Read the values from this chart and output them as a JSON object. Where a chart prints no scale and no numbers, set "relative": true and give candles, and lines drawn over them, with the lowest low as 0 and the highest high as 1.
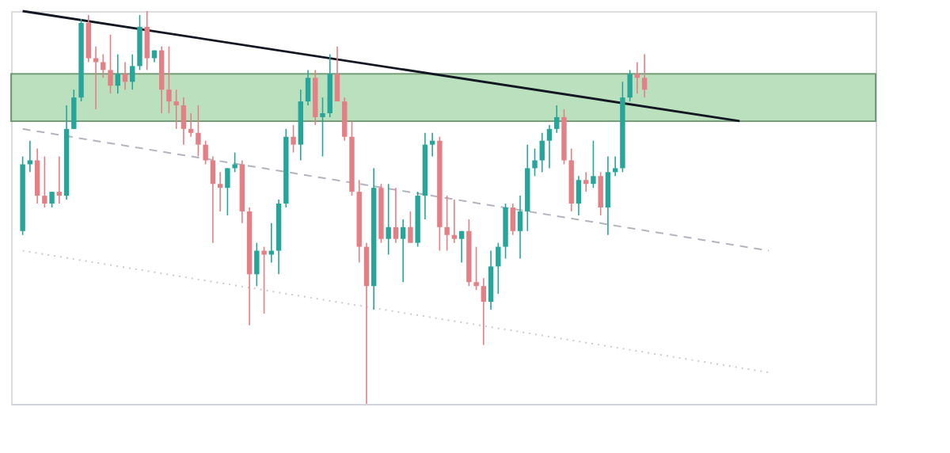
{
  "chart_data": {
    "type": "candlestick",
    "relative": true,
    "grid": false,
    "tick_labels": false,
    "categories": [
      null,
      null,
      null,
      null,
      null,
      null,
      null,
      null,
      null,
      null,
      null,
      null,
      null,
      null,
      null,
      null,
      null,
      null,
      null,
      null,
      null,
      null,
      null,
      null,
      null,
      null,
      null,
      null,
      null,
      null,
      null,
      null,
      null,
      null,
      null,
      null,
      null,
      null,
      null,
      null,
      null,
      null,
      null,
      null,
      null,
      null,
      null,
      null,
      null,
      null,
      null,
      null,
      null,
      null,
      null,
      null,
      null,
      null,
      null,
      null,
      null,
      null,
      null,
      null,
      null,
      null,
      null,
      null,
      null,
      null,
      null,
      null,
      null,
      null,
      null,
      null,
      null,
      null,
      null,
      null,
      null,
      null,
      null,
      null,
      null,
      null,
      null,
      null,
      null,
      null,
      null,
      null,
      null,
      null,
      null,
      null,
      null,
      null,
      null,
      null,
      null,
      null,
      null,
      null,
      null,
      null,
      null,
      null,
      null,
      null,
      null,
      null,
      null,
      null,
      null,
      null
    ],
    "ohlc": [
      [
        0.44,
        0.63,
        0.43,
        0.61
      ],
      [
        0.61,
        0.67,
        0.59,
        0.62
      ],
      [
        0.62,
        0.65,
        0.51,
        0.53
      ],
      [
        0.53,
        0.63,
        0.5,
        0.51
      ],
      [
        0.51,
        0.54,
        0.5,
        0.54
      ],
      [
        0.54,
        0.63,
        0.51,
        0.53
      ],
      [
        0.53,
        0.76,
        0.52,
        0.7
      ],
      [
        0.7,
        0.8,
        0.7,
        0.78
      ],
      [
        0.78,
        0.98,
        0.77,
        0.97
      ],
      [
        0.97,
        0.99,
        0.87,
        0.88
      ],
      [
        0.88,
        0.91,
        0.75,
        0.87
      ],
      [
        0.87,
        0.89,
        0.83,
        0.85
      ],
      [
        0.85,
        0.94,
        0.79,
        0.81
      ],
      [
        0.81,
        0.89,
        0.79,
        0.84
      ],
      [
        0.84,
        0.87,
        0.8,
        0.82
      ],
      [
        0.82,
        0.89,
        0.8,
        0.86
      ],
      [
        0.86,
        0.99,
        0.85,
        0.96
      ],
      [
        0.96,
        1.0,
        0.85,
        0.88
      ],
      [
        0.88,
        0.9,
        0.87,
        0.9
      ],
      [
        0.9,
        0.91,
        0.74,
        0.8
      ],
      [
        0.8,
        0.91,
        0.74,
        0.77
      ],
      [
        0.77,
        0.8,
        0.7,
        0.76
      ],
      [
        0.76,
        0.78,
        0.66,
        0.7
      ],
      [
        0.7,
        0.74,
        0.68,
        0.69
      ],
      [
        0.69,
        0.76,
        0.63,
        0.66
      ],
      [
        0.66,
        0.67,
        0.61,
        0.62
      ],
      [
        0.62,
        0.63,
        0.41,
        0.56
      ],
      [
        0.56,
        0.59,
        0.49,
        0.55
      ],
      [
        0.55,
        0.6,
        0.48,
        0.6
      ],
      [
        0.6,
        0.64,
        0.59,
        0.61
      ],
      [
        0.61,
        0.62,
        0.46,
        0.49
      ],
      [
        0.49,
        0.5,
        0.2,
        0.33
      ],
      [
        0.33,
        0.41,
        0.3,
        0.39
      ],
      [
        0.39,
        0.4,
        0.23,
        0.38
      ],
      [
        0.38,
        0.46,
        0.36,
        0.39
      ],
      [
        0.39,
        0.52,
        0.33,
        0.51
      ],
      [
        0.51,
        0.7,
        0.5,
        0.68
      ],
      [
        0.68,
        0.71,
        0.64,
        0.66
      ],
      [
        0.66,
        0.8,
        0.62,
        0.77
      ],
      [
        0.77,
        0.85,
        0.76,
        0.83
      ],
      [
        0.83,
        0.85,
        0.71,
        0.73
      ],
      [
        0.73,
        0.78,
        0.63,
        0.74
      ],
      [
        0.74,
        0.89,
        0.73,
        0.84
      ],
      [
        0.84,
        0.91,
        0.77,
        0.77
      ],
      [
        0.77,
        0.78,
        0.67,
        0.68
      ],
      [
        0.68,
        0.72,
        0.53,
        0.54
      ],
      [
        0.54,
        0.57,
        0.36,
        0.4
      ],
      [
        0.4,
        0.41,
        0.0,
        0.3
      ],
      [
        0.3,
        0.6,
        0.24,
        0.55
      ],
      [
        0.55,
        0.56,
        0.41,
        0.42
      ],
      [
        0.42,
        0.56,
        0.38,
        0.45
      ],
      [
        0.45,
        0.55,
        0.41,
        0.42
      ],
      [
        0.42,
        0.47,
        0.31,
        0.45
      ],
      [
        0.45,
        0.49,
        0.41,
        0.41
      ],
      [
        0.41,
        0.54,
        0.4,
        0.53
      ],
      [
        0.53,
        0.69,
        0.47,
        0.66
      ],
      [
        0.66,
        0.69,
        0.63,
        0.67
      ],
      [
        0.67,
        0.68,
        0.39,
        0.45
      ],
      [
        0.45,
        0.53,
        0.39,
        0.43
      ],
      [
        0.43,
        0.52,
        0.41,
        0.42
      ],
      [
        0.42,
        0.44,
        0.36,
        0.44
      ],
      [
        0.44,
        0.47,
        0.3,
        0.31
      ],
      [
        0.31,
        0.4,
        0.29,
        0.3
      ],
      [
        0.3,
        0.32,
        0.15,
        0.26
      ],
      [
        0.26,
        0.39,
        0.24,
        0.35
      ],
      [
        0.35,
        0.41,
        0.28,
        0.4
      ],
      [
        0.4,
        0.51,
        0.37,
        0.5
      ],
      [
        0.5,
        0.51,
        0.43,
        0.44
      ],
      [
        0.44,
        0.53,
        0.37,
        0.49
      ],
      [
        0.49,
        0.66,
        0.44,
        0.6
      ],
      [
        0.6,
        0.65,
        0.58,
        0.62
      ],
      [
        0.62,
        0.69,
        0.59,
        0.67
      ],
      [
        0.67,
        0.71,
        0.6,
        0.7
      ],
      [
        0.7,
        0.76,
        0.69,
        0.73
      ],
      [
        0.73,
        0.75,
        0.61,
        0.62
      ],
      [
        0.62,
        0.65,
        0.49,
        0.51
      ],
      [
        0.51,
        0.58,
        0.48,
        0.57
      ],
      [
        0.57,
        0.59,
        0.54,
        0.56
      ],
      [
        0.56,
        0.67,
        0.55,
        0.58
      ],
      [
        0.58,
        0.59,
        0.48,
        0.5
      ],
      [
        0.5,
        0.63,
        0.43,
        0.59
      ],
      [
        0.59,
        0.63,
        0.58,
        0.6
      ],
      [
        0.6,
        0.82,
        0.59,
        0.78
      ],
      [
        0.78,
        0.85,
        0.77,
        0.84
      ],
      [
        0.84,
        0.87,
        0.79,
        0.83
      ],
      [
        0.83,
        0.89,
        0.78,
        0.8
      ],
      null,
      null,
      null,
      null,
      null,
      null,
      null,
      null,
      null,
      null,
      null,
      null,
      null,
      null,
      null,
      null,
      null,
      null,
      null,
      null,
      null,
      null,
      null,
      null,
      null,
      null,
      null,
      null,
      null,
      null
    ],
    "series": [
      {
        "type": "line",
        "values": [
          1.0,
          null,
          null,
          null,
          null,
          null,
          null,
          null,
          null,
          null,
          null,
          null,
          null,
          null,
          null,
          null,
          null,
          null,
          null,
          null,
          null,
          null,
          null,
          null,
          null,
          null,
          null,
          null,
          null,
          null,
          null,
          null,
          null,
          null,
          null,
          null,
          null,
          null,
          null,
          null,
          null,
          null,
          null,
          null,
          null,
          null,
          null,
          null,
          null,
          null,
          null,
          null,
          null,
          null,
          null,
          null,
          null,
          null,
          null,
          null,
          null,
          null,
          null,
          null,
          null,
          null,
          null,
          null,
          null,
          null,
          null,
          null,
          null,
          null,
          null,
          null,
          null,
          null,
          null,
          null,
          null,
          null,
          null,
          null,
          null,
          null,
          null,
          null,
          null,
          null,
          null,
          null,
          null,
          null,
          null,
          null,
          null,
          null,
          0.72,
          null,
          null,
          null,
          null,
          null,
          null,
          null,
          null,
          null,
          null,
          null,
          null,
          null,
          null,
          null,
          null,
          null
        ],
        "color": "#131722",
        "line_style": "solid"
      },
      {
        "type": "line",
        "values": [
          0.7,
          null,
          null,
          null,
          null,
          null,
          null,
          null,
          null,
          null,
          null,
          null,
          null,
          null,
          null,
          null,
          null,
          null,
          null,
          null,
          null,
          null,
          null,
          null,
          null,
          null,
          null,
          null,
          null,
          null,
          null,
          null,
          null,
          null,
          null,
          null,
          null,
          null,
          null,
          null,
          null,
          null,
          null,
          null,
          null,
          null,
          null,
          null,
          null,
          null,
          null,
          null,
          null,
          null,
          null,
          null,
          null,
          null,
          null,
          null,
          null,
          null,
          null,
          null,
          null,
          null,
          null,
          null,
          null,
          null,
          null,
          null,
          null,
          null,
          null,
          null,
          null,
          null,
          null,
          null,
          null,
          null,
          null,
          null,
          null,
          null,
          null,
          null,
          null,
          null,
          null,
          null,
          null,
          null,
          null,
          null,
          null,
          null,
          null,
          null,
          null,
          null,
          0.39,
          null,
          null,
          null,
          null,
          null,
          null,
          null,
          null,
          null,
          null,
          null,
          null,
          null
        ],
        "color": "#b2b5be",
        "line_style": "dashed"
      },
      {
        "type": "line",
        "values": [
          0.39,
          null,
          null,
          null,
          null,
          null,
          null,
          null,
          null,
          null,
          null,
          null,
          null,
          null,
          null,
          null,
          null,
          null,
          null,
          null,
          null,
          null,
          null,
          null,
          null,
          null,
          null,
          null,
          null,
          null,
          null,
          null,
          null,
          null,
          null,
          null,
          null,
          null,
          null,
          null,
          null,
          null,
          null,
          null,
          null,
          null,
          null,
          null,
          null,
          null,
          null,
          null,
          null,
          null,
          null,
          null,
          null,
          null,
          null,
          null,
          null,
          null,
          null,
          null,
          null,
          null,
          null,
          null,
          null,
          null,
          null,
          null,
          null,
          null,
          null,
          null,
          null,
          null,
          null,
          null,
          null,
          null,
          null,
          null,
          null,
          null,
          null,
          null,
          null,
          null,
          null,
          null,
          null,
          null,
          null,
          null,
          null,
          null,
          null,
          null,
          null,
          null,
          0.08,
          null,
          null,
          null,
          null,
          null,
          null,
          null,
          null,
          null,
          null,
          null,
          null,
          null
        ],
        "color": "#c9cbd1",
        "line_style": "dotted"
      }
    ],
    "bands": [
      {
        "axis": "y",
        "from": 0.72,
        "to": 0.84,
        "color": "#a5d6a7"
      }
    ]
  }
}
